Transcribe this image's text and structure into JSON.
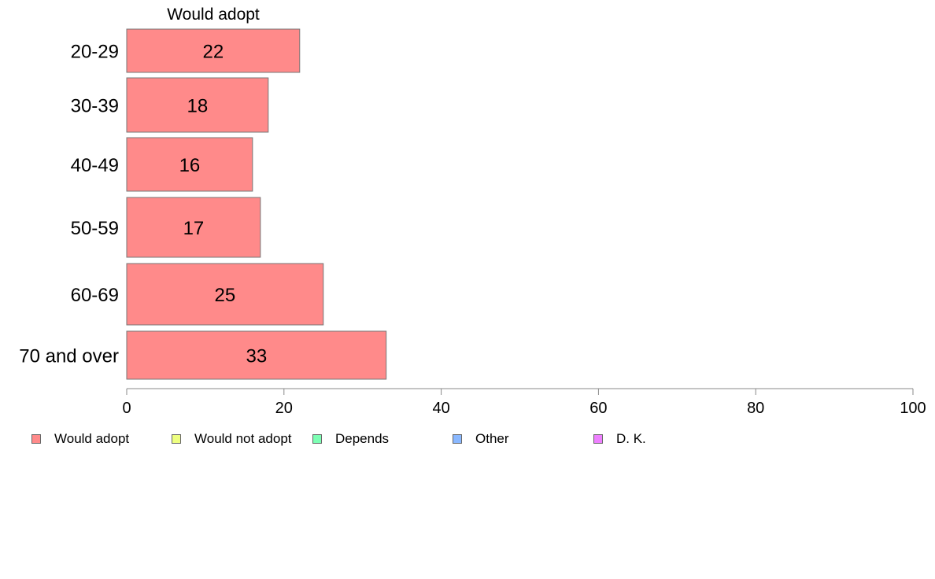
{
  "chart_data": {
    "type": "bar",
    "orientation": "horizontal",
    "title": "Would adopt",
    "categories": [
      "20-29",
      "30-39",
      "40-49",
      "50-59",
      "60-69",
      "70 and over"
    ],
    "series": [
      {
        "name": "Would adopt",
        "values": [
          22,
          18,
          16,
          17,
          25,
          33
        ],
        "color": "#ff8a8a"
      }
    ],
    "data_labels": [
      "22",
      "18",
      "16",
      "17",
      "25",
      "33"
    ],
    "xlim": [
      0,
      100
    ],
    "xticks": [
      0,
      20,
      40,
      60,
      80,
      100
    ],
    "grid": false,
    "legend_position": "bottom",
    "legend": [
      {
        "label": "Would adopt",
        "color": "#ff8a8a"
      },
      {
        "label": "Would not adopt",
        "color": "#eeff80"
      },
      {
        "label": "Depends",
        "color": "#7dffb4"
      },
      {
        "label": "Other",
        "color": "#8ab8ff"
      },
      {
        "label": "D. K.",
        "color": "#ee80ff"
      }
    ]
  }
}
